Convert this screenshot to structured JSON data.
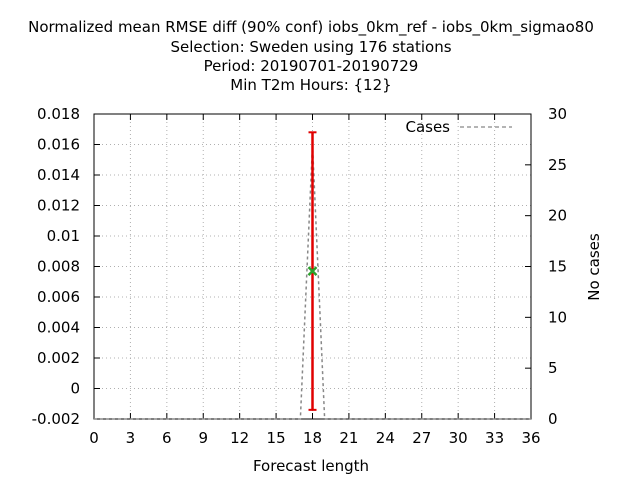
{
  "chart_data": {
    "type": "line",
    "title_lines": [
      "Normalized mean RMSE diff (90% conf) iobs_0km_ref - iobs_0km_sigmao80",
      "Selection: Sweden using   176 stations",
      "Period: 20190701-20190729",
      "Min T2m   Hours: {12}"
    ],
    "xlabel": "Forecast length",
    "ylabel": "",
    "y2label": "No cases",
    "xlim": [
      0,
      36
    ],
    "ylim": [
      -0.002,
      0.018
    ],
    "y2lim": [
      0,
      30
    ],
    "x_ticks": [
      "0",
      "3",
      "6",
      "9",
      "12",
      "15",
      "18",
      "21",
      "24",
      "27",
      "30",
      "33",
      "36"
    ],
    "y_ticks": [
      "-0.002",
      "0",
      "0.002",
      "0.004",
      "0.006",
      "0.008",
      "0.01",
      "0.012",
      "0.014",
      "0.016",
      "0.018"
    ],
    "y2_ticks": [
      "0",
      "5",
      "10",
      "15",
      "20",
      "25",
      "30"
    ],
    "grid": true,
    "legend": {
      "position": "top-right",
      "entries": [
        "Cases"
      ]
    },
    "series": [
      {
        "name": "Cases",
        "axis": "y2",
        "style": "dashed",
        "color": "#888888",
        "x": [
          0,
          17,
          18,
          19,
          36
        ],
        "y": [
          0,
          0,
          27,
          0,
          0
        ]
      }
    ],
    "point": {
      "x": 18,
      "y": 0.0077,
      "color": "#2ca02c"
    },
    "errorbar": {
      "x": 18,
      "low": -0.0014,
      "high": 0.0168,
      "color": "#e00000"
    }
  }
}
